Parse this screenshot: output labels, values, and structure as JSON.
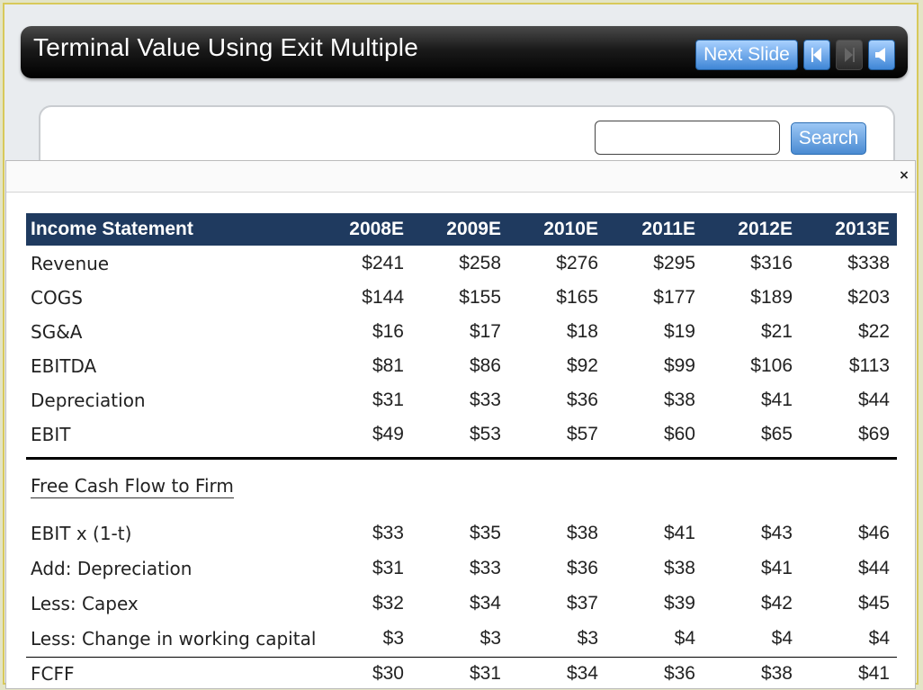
{
  "header": {
    "title": "Terminal Value Using Exit Multiple",
    "next_label": "Next Slide",
    "icons": [
      "prev-arrow-icon",
      "next-arrow-icon",
      "speaker-icon"
    ],
    "accent": "#3f86d6"
  },
  "search": {
    "value": "",
    "button_label": "Search"
  },
  "modal": {
    "close_label": "×"
  },
  "table": {
    "header_label": "Income Statement",
    "years": [
      "2008E",
      "2009E",
      "2010E",
      "2011E",
      "2012E",
      "2013E"
    ],
    "income_rows": [
      {
        "label": "Revenue",
        "values": [
          "$241",
          "$258",
          "$276",
          "$295",
          "$316",
          "$338"
        ]
      },
      {
        "label": "COGS",
        "values": [
          "$144",
          "$155",
          "$165",
          "$177",
          "$189",
          "$203"
        ]
      },
      {
        "label": "SG&A",
        "values": [
          "$16",
          "$17",
          "$18",
          "$19",
          "$21",
          "$22"
        ]
      },
      {
        "label": "EBITDA",
        "values": [
          "$81",
          "$86",
          "$92",
          "$99",
          "$106",
          "$113"
        ]
      },
      {
        "label": "Depreciation",
        "values": [
          "$31",
          "$33",
          "$36",
          "$38",
          "$41",
          "$44"
        ]
      },
      {
        "label": "EBIT",
        "values": [
          "$49",
          "$53",
          "$57",
          "$60",
          "$65",
          "$69"
        ]
      }
    ],
    "fcf_title": "Free Cash Flow to Firm",
    "fcf_rows": [
      {
        "label": "EBIT x (1-t)",
        "values": [
          "$33",
          "$35",
          "$38",
          "$41",
          "$43",
          "$46"
        ]
      },
      {
        "label": "Add: Depreciation",
        "values": [
          "$31",
          "$33",
          "$36",
          "$38",
          "$41",
          "$44"
        ]
      },
      {
        "label": "Less: Capex",
        "values": [
          "$32",
          "$34",
          "$37",
          "$39",
          "$42",
          "$45"
        ]
      },
      {
        "label": "Less: Change in working capital",
        "values": [
          "$3",
          "$3",
          "$3",
          "$4",
          "$4",
          "$4"
        ]
      }
    ],
    "total_row": {
      "label": "FCFF",
      "values": [
        "$30",
        "$31",
        "$34",
        "$36",
        "$38",
        "$41"
      ]
    }
  }
}
